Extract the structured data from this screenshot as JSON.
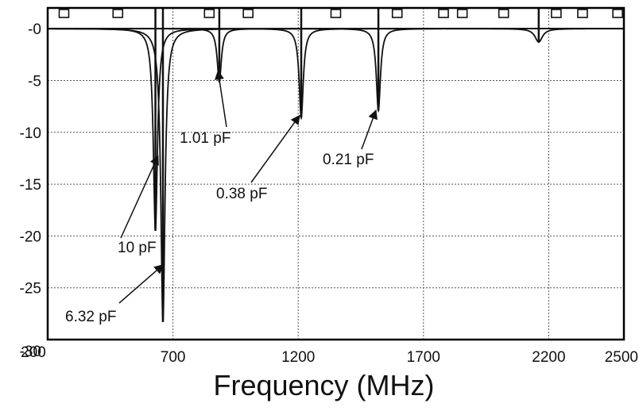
{
  "chart_data": {
    "type": "line",
    "title": "",
    "xlabel": "Frequency (MHz)",
    "ylabel": "",
    "xlim": [
      200,
      2500
    ],
    "ylim": [
      -30,
      2
    ],
    "grid": true,
    "xticks": [
      200,
      700,
      1200,
      1700,
      2200,
      2500
    ],
    "xtick_labels": [
      "200",
      "700",
      "1200",
      "1700",
      "2200",
      "2500"
    ],
    "yticks": [
      0,
      -5,
      -10,
      -15,
      -20,
      -25,
      -30
    ],
    "ytick_labels": [
      "-0",
      "-5",
      "-10",
      "-15",
      "-20",
      "-25",
      "-30"
    ],
    "series": [
      {
        "name": "10 pF",
        "resonance_mhz": 630,
        "min_db": -19.5
      },
      {
        "name": "6.32 pF",
        "resonance_mhz": 660,
        "min_db": -28.3
      },
      {
        "name": "1.01 pF",
        "resonance_mhz": 885,
        "min_db": -5.1
      },
      {
        "name": "0.38 pF",
        "resonance_mhz": 1212,
        "min_db": -8.6
      },
      {
        "name": "0.21 pF",
        "resonance_mhz": 1520,
        "min_db": -7.9
      },
      {
        "name": "",
        "resonance_mhz": 2160,
        "min_db": -1.3
      }
    ],
    "annotations": [
      {
        "text": "10 pF",
        "x": 640,
        "y": -12.3
      },
      {
        "text": "6.32 pF",
        "x": 660,
        "y": -22.8
      },
      {
        "text": "1.01 pF",
        "x": 880,
        "y": -4.1
      },
      {
        "text": "0.38 pF",
        "x": 1205,
        "y": -8.4
      },
      {
        "text": "0.21 pF",
        "x": 1510,
        "y": -7.9
      }
    ],
    "markers_x": [
      265,
      480,
      845,
      1000,
      1350,
      1595,
      1780,
      1855,
      2020,
      2230,
      2335,
      2475
    ]
  }
}
